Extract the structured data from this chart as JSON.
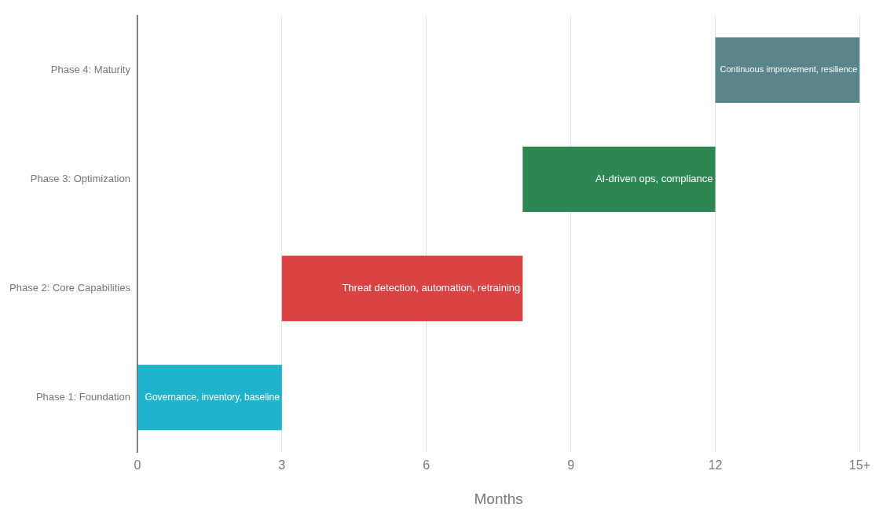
{
  "chart_data": {
    "type": "bar",
    "orientation": "horizontal",
    "categories": [
      "Phase 4: Maturity",
      "Phase 3: Optimization",
      "Phase 2: Core Capabilities",
      "Phase 1: Foundation"
    ],
    "base": [
      12,
      8,
      3,
      0
    ],
    "values": [
      3,
      4,
      5,
      3
    ],
    "colors": [
      "#5a868b",
      "#2e8753",
      "#d94343",
      "#1fb3cc"
    ],
    "value_labels": [
      "Continuous improvement, resilience",
      "AI-driven ops, compliance",
      "Threat detection, automation, retraining",
      "Governance, inventory, baseline"
    ],
    "xlabel": "Months",
    "xlim": [
      0,
      15
    ],
    "xticks": [
      0,
      3,
      6,
      9,
      12,
      {
        "value": 15,
        "label": "15+"
      }
    ],
    "grid": "x"
  }
}
